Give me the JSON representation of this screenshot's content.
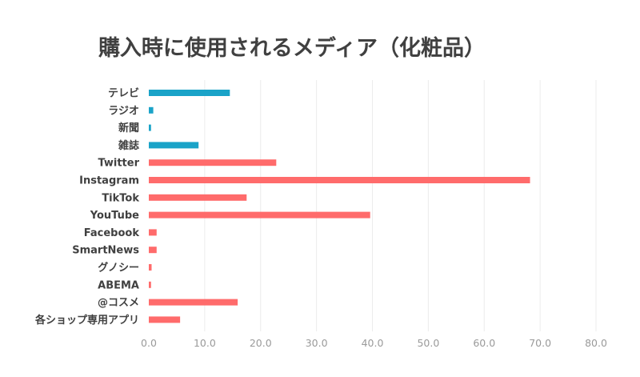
{
  "chart_data": {
    "type": "bar",
    "orientation": "horizontal",
    "title": "購入時に使用されるメディア（化粧品）",
    "categories": [
      "テレビ",
      "ラジオ",
      "新聞",
      "雑誌",
      "Twitter",
      "Instagram",
      "TikTok",
      "YouTube",
      "Facebook",
      "SmartNews",
      "グノシー",
      "ABEMA",
      "@コスメ",
      "各ショップ専用アプリ"
    ],
    "values": [
      14.5,
      0.8,
      0.4,
      8.9,
      22.8,
      68.2,
      17.5,
      39.6,
      1.4,
      1.4,
      0.5,
      0.4,
      15.9,
      5.6
    ],
    "colors": [
      "#1aa3c8",
      "#1aa3c8",
      "#1aa3c8",
      "#1aa3c8",
      "#ff6b6b",
      "#ff6b6b",
      "#ff6b6b",
      "#ff6b6b",
      "#ff6b6b",
      "#ff6b6b",
      "#ff6b6b",
      "#ff6b6b",
      "#ff6b6b",
      "#ff6b6b"
    ],
    "xlim": [
      0,
      80
    ],
    "xticks": [
      "0.0",
      "10.0",
      "20.0",
      "30.0",
      "40.0",
      "50.0",
      "60.0",
      "70.0",
      "80.0"
    ],
    "grid": true,
    "legend": "none"
  }
}
